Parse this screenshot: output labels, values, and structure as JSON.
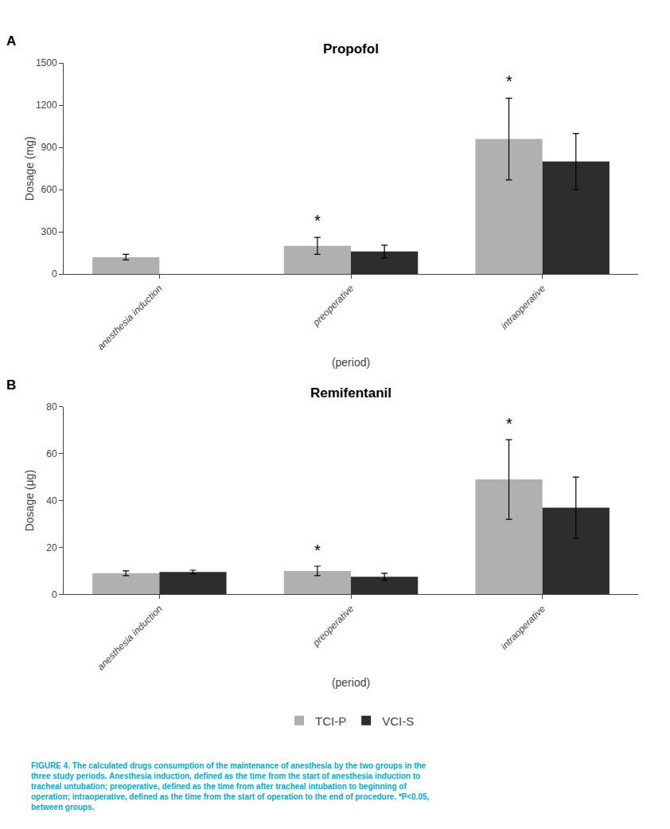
{
  "chart_data": [
    {
      "type": "bar",
      "title": "Propofol",
      "panel_label": "A",
      "xlabel": "(period)",
      "ylabel": "Dosage (mg)",
      "categories": [
        "anesthesia induction",
        "preoperative",
        "intraoperative"
      ],
      "series": [
        {
          "name": "TCI-P",
          "color": "#b0b0b0",
          "values": [
            120,
            200,
            960
          ],
          "errors": [
            20,
            60,
            290
          ]
        },
        {
          "name": "VCI-S",
          "color": "#2d2d2d",
          "values": [
            null,
            160,
            800
          ],
          "errors": [
            null,
            45,
            200
          ]
        }
      ],
      "significance": [
        null,
        "*",
        "*"
      ],
      "ylim": [
        0,
        1500
      ],
      "yticks": [
        0,
        300,
        600,
        900,
        1200,
        1500
      ],
      "grid": false,
      "legend": "bottom"
    },
    {
      "type": "bar",
      "title": "Remifentanil",
      "panel_label": "B",
      "xlabel": "(period)",
      "ylabel": "Dosage (μg)",
      "categories": [
        "anesthesia induction",
        "preoperative",
        "intraoperative"
      ],
      "series": [
        {
          "name": "TCI-P",
          "color": "#b0b0b0",
          "values": [
            9,
            10,
            49
          ],
          "errors": [
            1.0,
            2.0,
            17
          ]
        },
        {
          "name": "VCI-S",
          "color": "#2d2d2d",
          "values": [
            9.5,
            7.5,
            37
          ],
          "errors": [
            0.8,
            1.5,
            13
          ]
        }
      ],
      "significance": [
        null,
        "*",
        "*"
      ],
      "ylim": [
        0,
        80
      ],
      "yticks": [
        0,
        20,
        40,
        60,
        80
      ],
      "grid": false,
      "legend": "bottom"
    }
  ],
  "caption": {
    "text": [
      "FIGURE 4. The calculated drugs consumption of the maintenance of anesthesia by the two groups in the",
      "three study periods. Anesthesia induction, defined as the time from the start of anesthesia induction to",
      "tracheal untubation; preoperative, defined as the time from after tracheal intubation to beginning of",
      "operation; intraoperative, defined as the time from the start of operation to the end of procedure. *P<0.05,",
      "between groups."
    ],
    "color": "#00aacc"
  }
}
